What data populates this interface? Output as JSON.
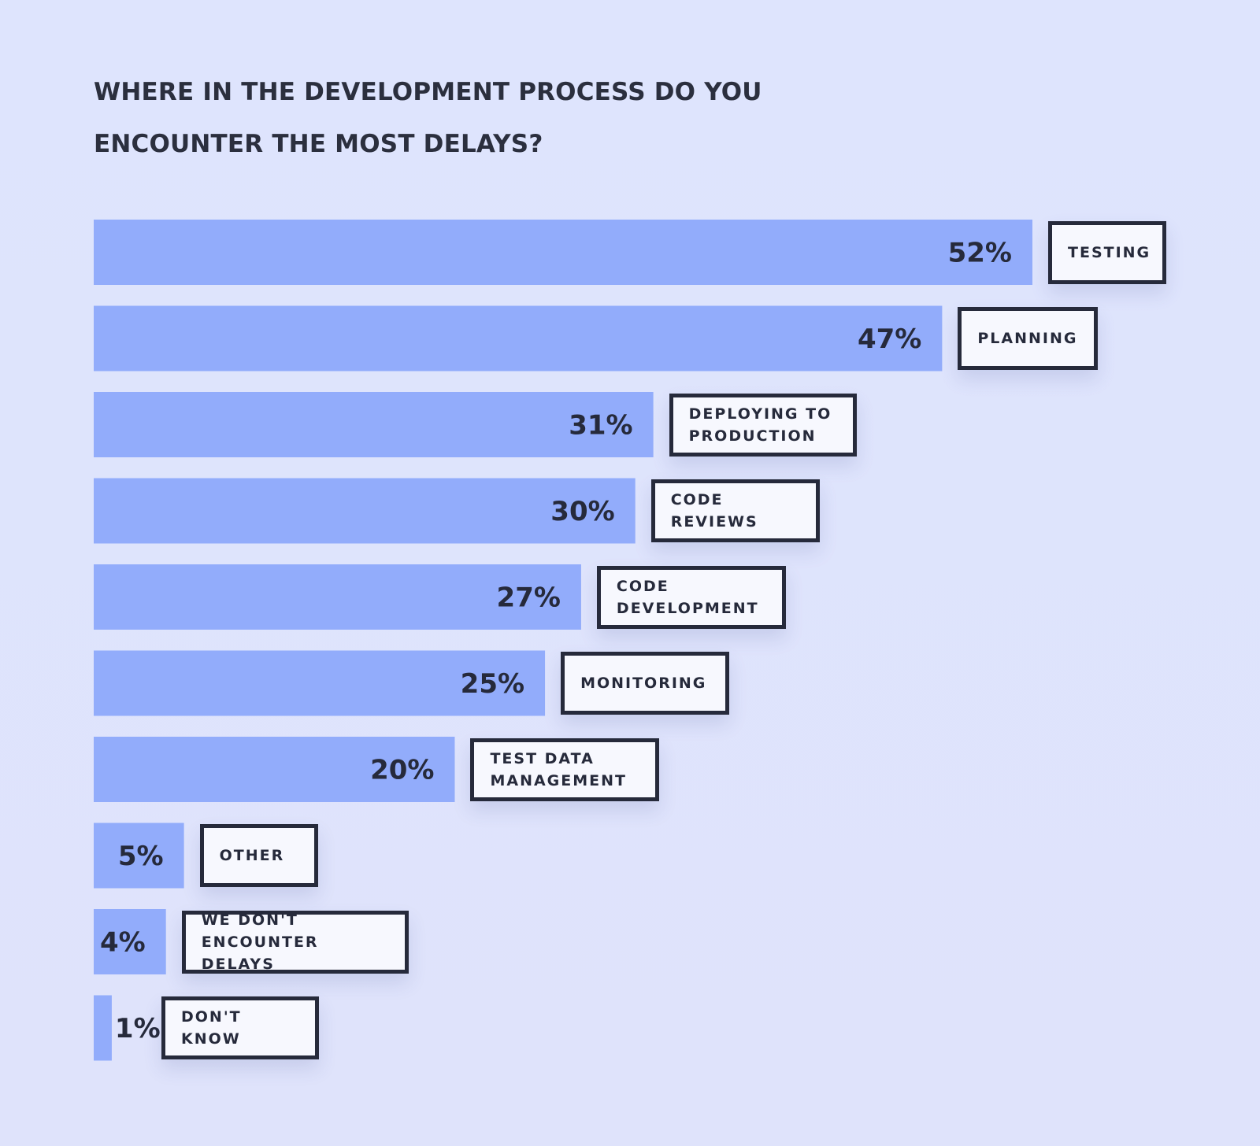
{
  "chart_data": {
    "type": "bar",
    "orientation": "horizontal",
    "title": "WHERE IN THE DEVELOPMENT PROCESS DO YOU ENCOUNTER THE MOST DELAYS?",
    "categories": [
      "TESTING",
      "PLANNING",
      "DEPLOYING TO PRODUCTION",
      "CODE REVIEWS",
      "CODE DEVELOPMENT",
      "MONITORING",
      "TEST DATA MANAGEMENT",
      "OTHER",
      "WE DON'T ENCOUNTER DELAYS",
      "DON'T KNOW"
    ],
    "category_lines": [
      [
        "TESTING"
      ],
      [
        "PLANNING"
      ],
      [
        "DEPLOYING TO",
        "PRODUCTION"
      ],
      [
        "CODE REVIEWS"
      ],
      [
        "CODE",
        "DEVELOPMENT"
      ],
      [
        "MONITORING"
      ],
      [
        "TEST DATA",
        "MANAGEMENT"
      ],
      [
        "OTHER"
      ],
      [
        "WE DON'T",
        "ENCOUNTER DELAYS"
      ],
      [
        "DON'T KNOW"
      ]
    ],
    "values": [
      52,
      47,
      31,
      30,
      27,
      25,
      20,
      5,
      4,
      1
    ],
    "value_labels": [
      "52%",
      "47%",
      "31%",
      "30%",
      "27%",
      "25%",
      "20%",
      "5%",
      "4%",
      "1%"
    ],
    "unit": "%",
    "xlim": [
      0,
      52
    ],
    "grid": false,
    "legend": "none",
    "colors": {
      "bar": "#92acfb",
      "background": "#dee4fd",
      "text": "#262a3b",
      "label_box": "#f7f8fe",
      "label_border": "#262a3b"
    }
  }
}
